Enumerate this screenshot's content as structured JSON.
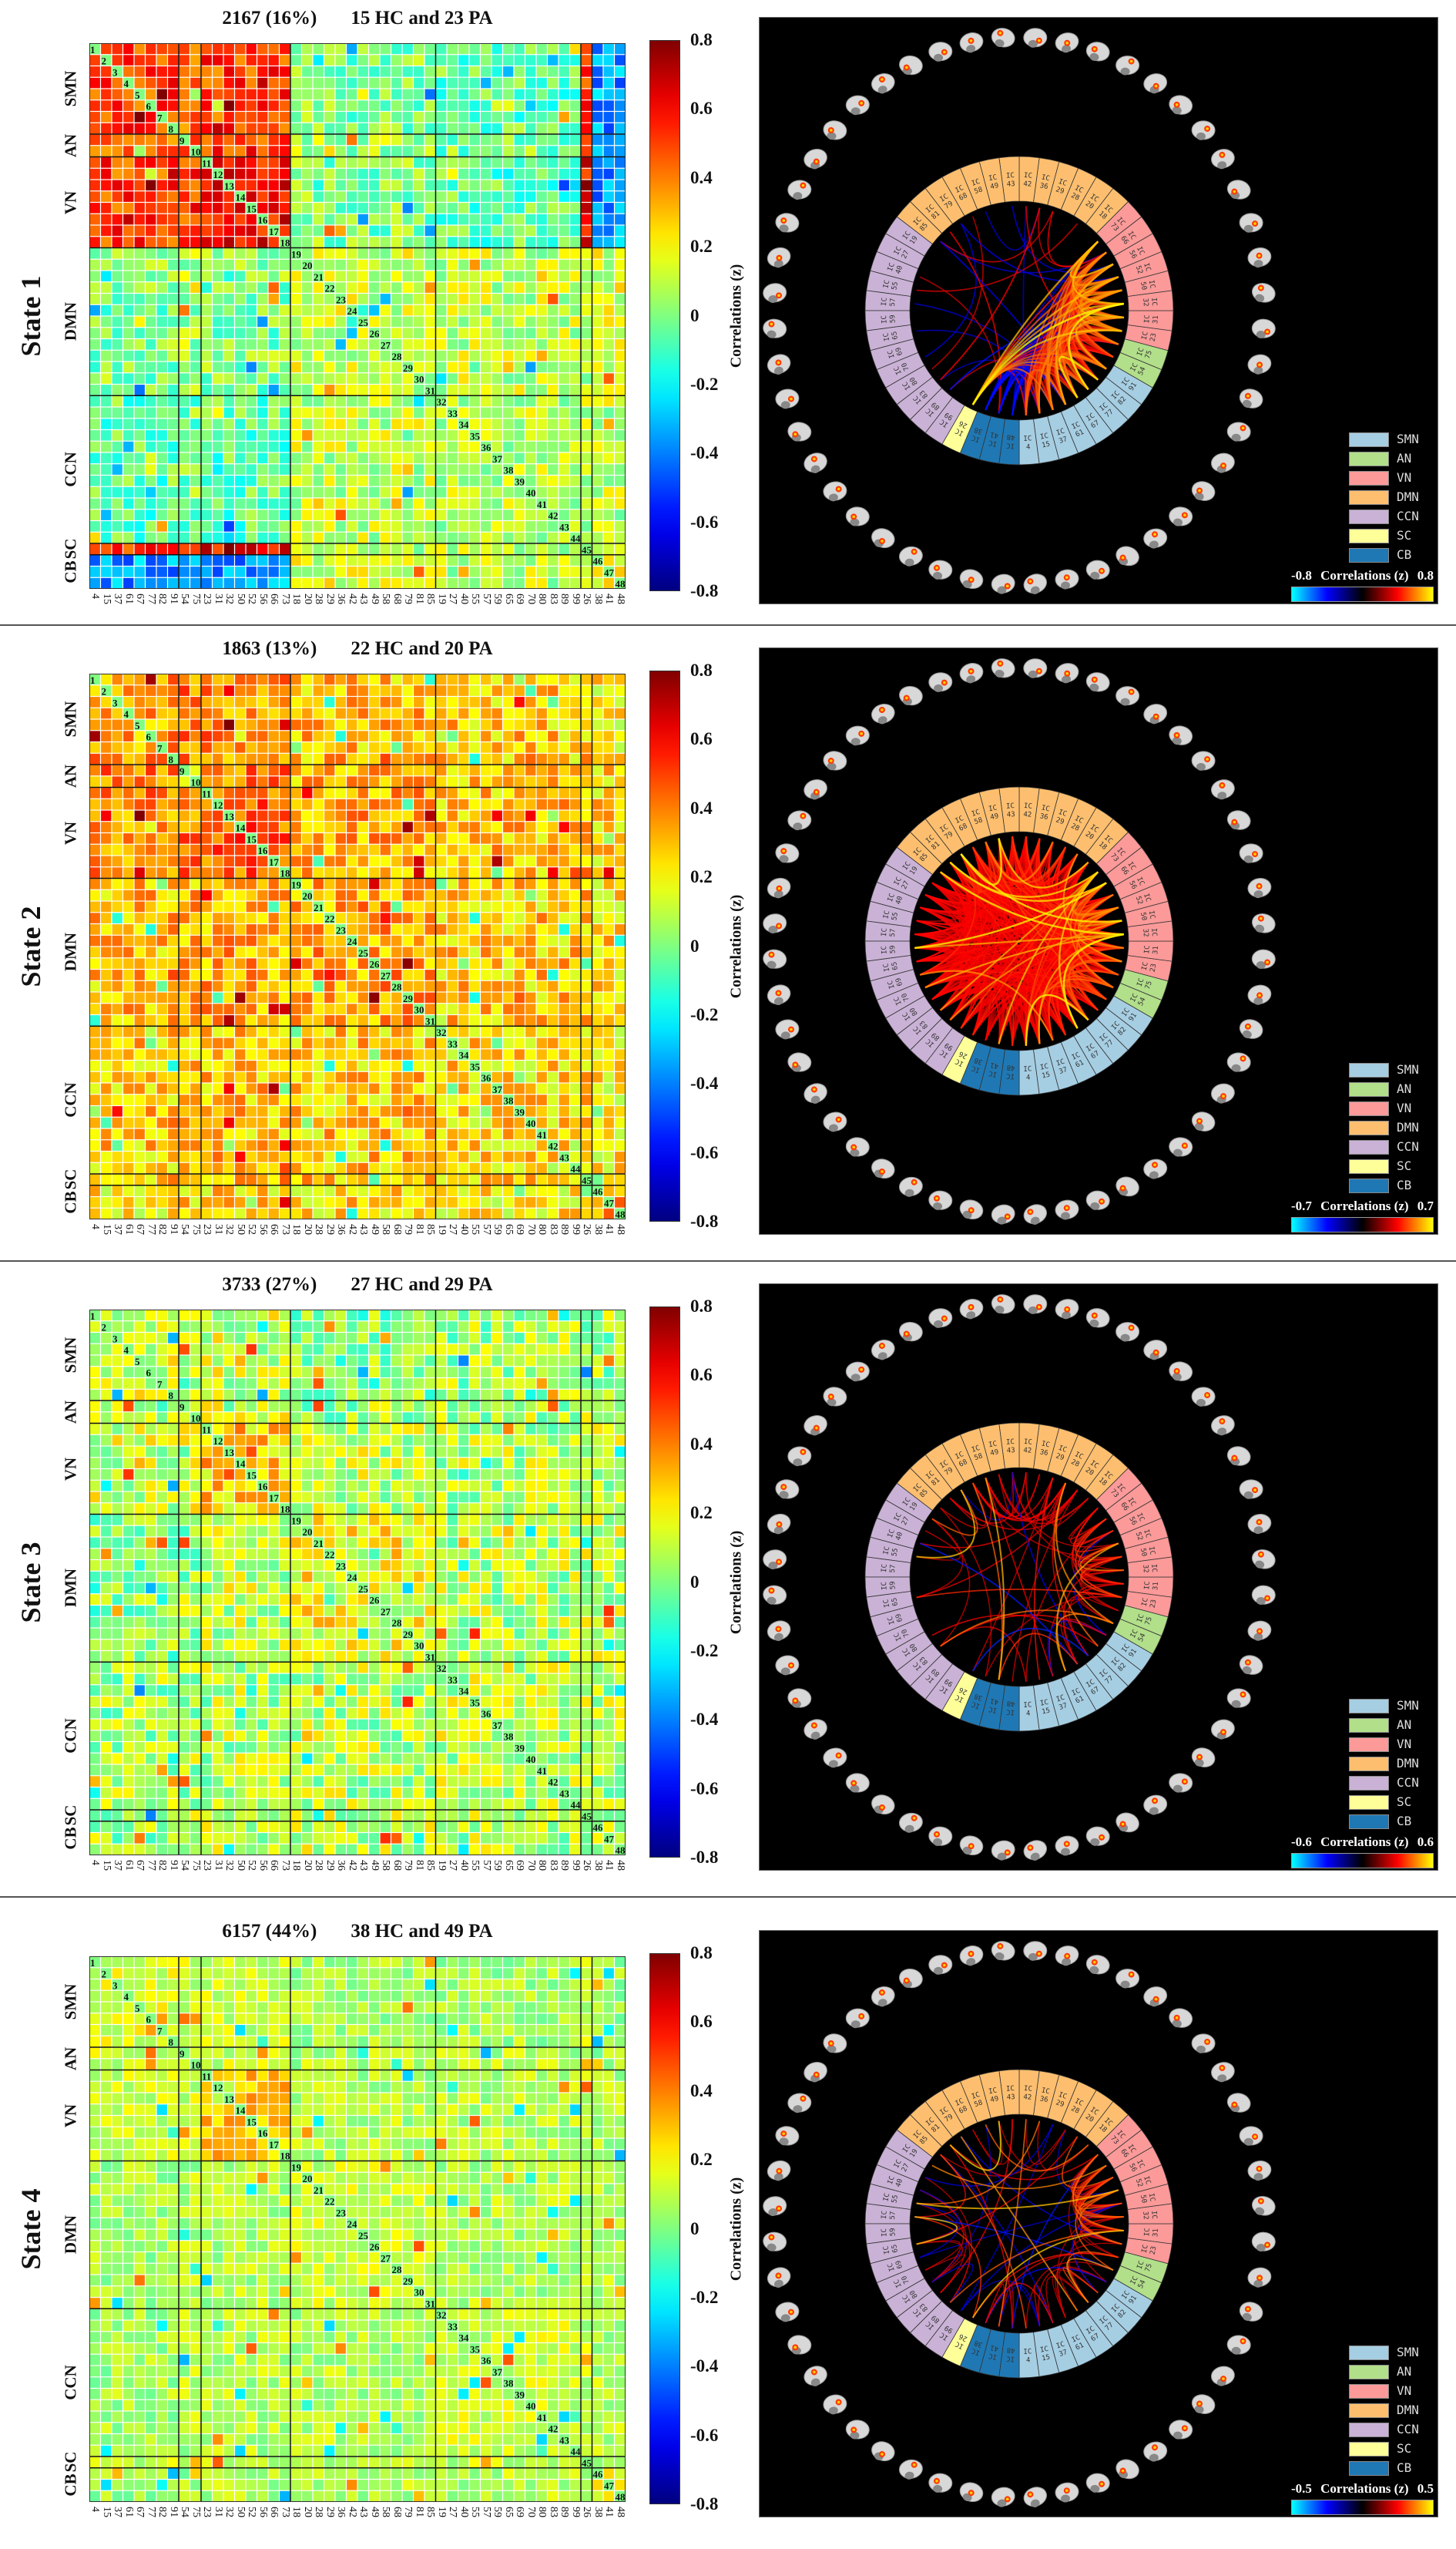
{
  "networks": [
    {
      "name": "SMN",
      "color": "#a6cee3",
      "ics": [
        "4",
        "15",
        "37",
        "61",
        "67",
        "77",
        "82",
        "91"
      ]
    },
    {
      "name": "AN",
      "color": "#b2df8a",
      "ics": [
        "54",
        "75"
      ]
    },
    {
      "name": "VN",
      "color": "#fb9a99",
      "ics": [
        "23",
        "31",
        "32",
        "50",
        "52",
        "56",
        "66",
        "73"
      ]
    },
    {
      "name": "DMN",
      "color": "#fdbf6f",
      "ics": [
        "18",
        "20",
        "28",
        "29",
        "36",
        "42",
        "43",
        "49",
        "58",
        "68",
        "79",
        "81",
        "85"
      ]
    },
    {
      "name": "CCN",
      "color": "#cab2d6",
      "ics": [
        "19",
        "27",
        "40",
        "55",
        "57",
        "59",
        "65",
        "69",
        "70",
        "80",
        "83",
        "89",
        "99"
      ]
    },
    {
      "name": "SC",
      "color": "#ffff99",
      "ics": [
        "26"
      ]
    },
    {
      "name": "CB",
      "color": "#1f78b4",
      "ics": [
        "38",
        "41",
        "48"
      ]
    }
  ],
  "ic_prefix": "IC",
  "heatmap_colorbar": {
    "label": "Correlations (z)",
    "ticks": [
      "0.8",
      "0.6",
      "0.4",
      "0.2",
      "0",
      "-0.2",
      "-0.4",
      "-0.6",
      "-0.8"
    ]
  },
  "diag_color": "#80ff80",
  "states": [
    {
      "label": "State 1",
      "count": "2167 (16%)",
      "subjects": "15 HC and 23 PA",
      "ring_colorbar": {
        "min": "-0.8",
        "label": "Correlations (z)",
        "max": "0.8"
      }
    },
    {
      "label": "State 2",
      "count": "1863 (13%)",
      "subjects": "22 HC and 20 PA",
      "ring_colorbar": {
        "min": "-0.7",
        "label": "Correlations (z)",
        "max": "0.7"
      }
    },
    {
      "label": "State 3",
      "count": "3733 (27%)",
      "subjects": "27 HC and 29 PA",
      "ring_colorbar": {
        "min": "-0.6",
        "label": "Correlations (z)",
        "max": "0.6"
      }
    },
    {
      "label": "State 4",
      "count": "6157 (44%)",
      "subjects": "38 HC and 49 PA",
      "ring_colorbar": {
        "min": "-0.5",
        "label": "Correlations (z)",
        "max": "0.5"
      }
    }
  ],
  "chart_data": [
    {
      "type": "heatmap",
      "title": "State 1: 2167 (16%) 15 HC and 23 PA",
      "zlim": [
        -0.8,
        0.8
      ],
      "link_threshold": 0.3,
      "link_max": 0.8,
      "noise": 0.15,
      "seed": 11,
      "block_order": [
        "SMN",
        "AN",
        "VN",
        "DMN",
        "CCN",
        "SC",
        "CB"
      ],
      "block_means": [
        [
          0.5,
          0.45,
          0.5,
          0.0,
          -0.05,
          0.55,
          -0.35
        ],
        [
          0.45,
          0.4,
          0.5,
          0.05,
          0.0,
          0.4,
          -0.25
        ],
        [
          0.5,
          0.5,
          0.6,
          0.0,
          -0.05,
          0.6,
          -0.35
        ],
        [
          0.0,
          0.05,
          0.0,
          0.12,
          0.1,
          0.05,
          0.15
        ],
        [
          -0.05,
          0.0,
          -0.05,
          0.1,
          0.08,
          0.1,
          0.1
        ],
        [
          0.55,
          0.4,
          0.6,
          0.05,
          0.1,
          0.1,
          0.2
        ],
        [
          -0.35,
          -0.25,
          -0.35,
          0.15,
          0.1,
          0.2,
          0.15
        ]
      ]
    },
    {
      "type": "heatmap",
      "title": "State 2: 1863 (13%) 22 HC and 20 PA",
      "zlim": [
        -0.8,
        0.8
      ],
      "link_threshold": 0.3,
      "link_max": 0.7,
      "noise": 0.15,
      "seed": 23,
      "block_order": [
        "SMN",
        "AN",
        "VN",
        "DMN",
        "CCN",
        "SC",
        "CB"
      ],
      "block_means": [
        [
          0.35,
          0.4,
          0.38,
          0.3,
          0.28,
          0.3,
          0.22
        ],
        [
          0.4,
          0.3,
          0.4,
          0.32,
          0.3,
          0.35,
          0.25
        ],
        [
          0.38,
          0.4,
          0.45,
          0.33,
          0.3,
          0.33,
          0.25
        ],
        [
          0.3,
          0.32,
          0.33,
          0.35,
          0.28,
          0.3,
          0.25
        ],
        [
          0.28,
          0.3,
          0.3,
          0.28,
          0.25,
          0.28,
          0.22
        ],
        [
          0.3,
          0.35,
          0.33,
          0.3,
          0.28,
          0.3,
          0.25
        ],
        [
          0.22,
          0.25,
          0.25,
          0.25,
          0.22,
          0.25,
          0.4
        ]
      ]
    },
    {
      "type": "heatmap",
      "title": "State 3: 3733 (27%) 27 HC and 29 PA",
      "zlim": [
        -0.8,
        0.8
      ],
      "link_threshold": 0.25,
      "link_max": 0.6,
      "noise": 0.17,
      "seed": 37,
      "block_order": [
        "SMN",
        "AN",
        "VN",
        "DMN",
        "CCN",
        "SC",
        "CB"
      ],
      "block_means": [
        [
          0.15,
          0.05,
          0.12,
          0.0,
          0.05,
          0.05,
          0.05
        ],
        [
          0.05,
          0.1,
          0.12,
          0.05,
          0.08,
          0.1,
          0.05
        ],
        [
          0.12,
          0.12,
          0.28,
          0.1,
          0.08,
          0.12,
          0.1
        ],
        [
          0.0,
          0.05,
          0.1,
          0.18,
          0.08,
          0.1,
          0.1
        ],
        [
          0.05,
          0.08,
          0.08,
          0.08,
          0.1,
          0.1,
          0.08
        ],
        [
          0.05,
          0.1,
          0.12,
          0.1,
          0.1,
          0.1,
          0.1
        ],
        [
          0.05,
          0.05,
          0.1,
          0.1,
          0.08,
          0.1,
          0.1
        ]
      ]
    },
    {
      "type": "heatmap",
      "title": "State 4: 6157 (44%) 38 HC and 49 PA",
      "zlim": [
        -0.8,
        0.8
      ],
      "link_threshold": 0.2,
      "link_max": 0.5,
      "noise": 0.1,
      "seed": 53,
      "block_order": [
        "SMN",
        "AN",
        "VN",
        "DMN",
        "CCN",
        "SC",
        "CB"
      ],
      "block_means": [
        [
          0.15,
          0.12,
          0.12,
          0.06,
          0.06,
          0.1,
          0.05
        ],
        [
          0.12,
          0.1,
          0.12,
          0.08,
          0.08,
          0.1,
          0.06
        ],
        [
          0.12,
          0.12,
          0.3,
          0.08,
          0.08,
          0.1,
          0.08
        ],
        [
          0.06,
          0.08,
          0.08,
          0.12,
          0.08,
          0.1,
          0.08
        ],
        [
          0.06,
          0.08,
          0.08,
          0.08,
          0.12,
          0.1,
          0.08
        ],
        [
          0.1,
          0.1,
          0.1,
          0.1,
          0.1,
          0.1,
          0.1
        ],
        [
          0.05,
          0.06,
          0.08,
          0.08,
          0.08,
          0.1,
          0.2
        ]
      ]
    }
  ]
}
